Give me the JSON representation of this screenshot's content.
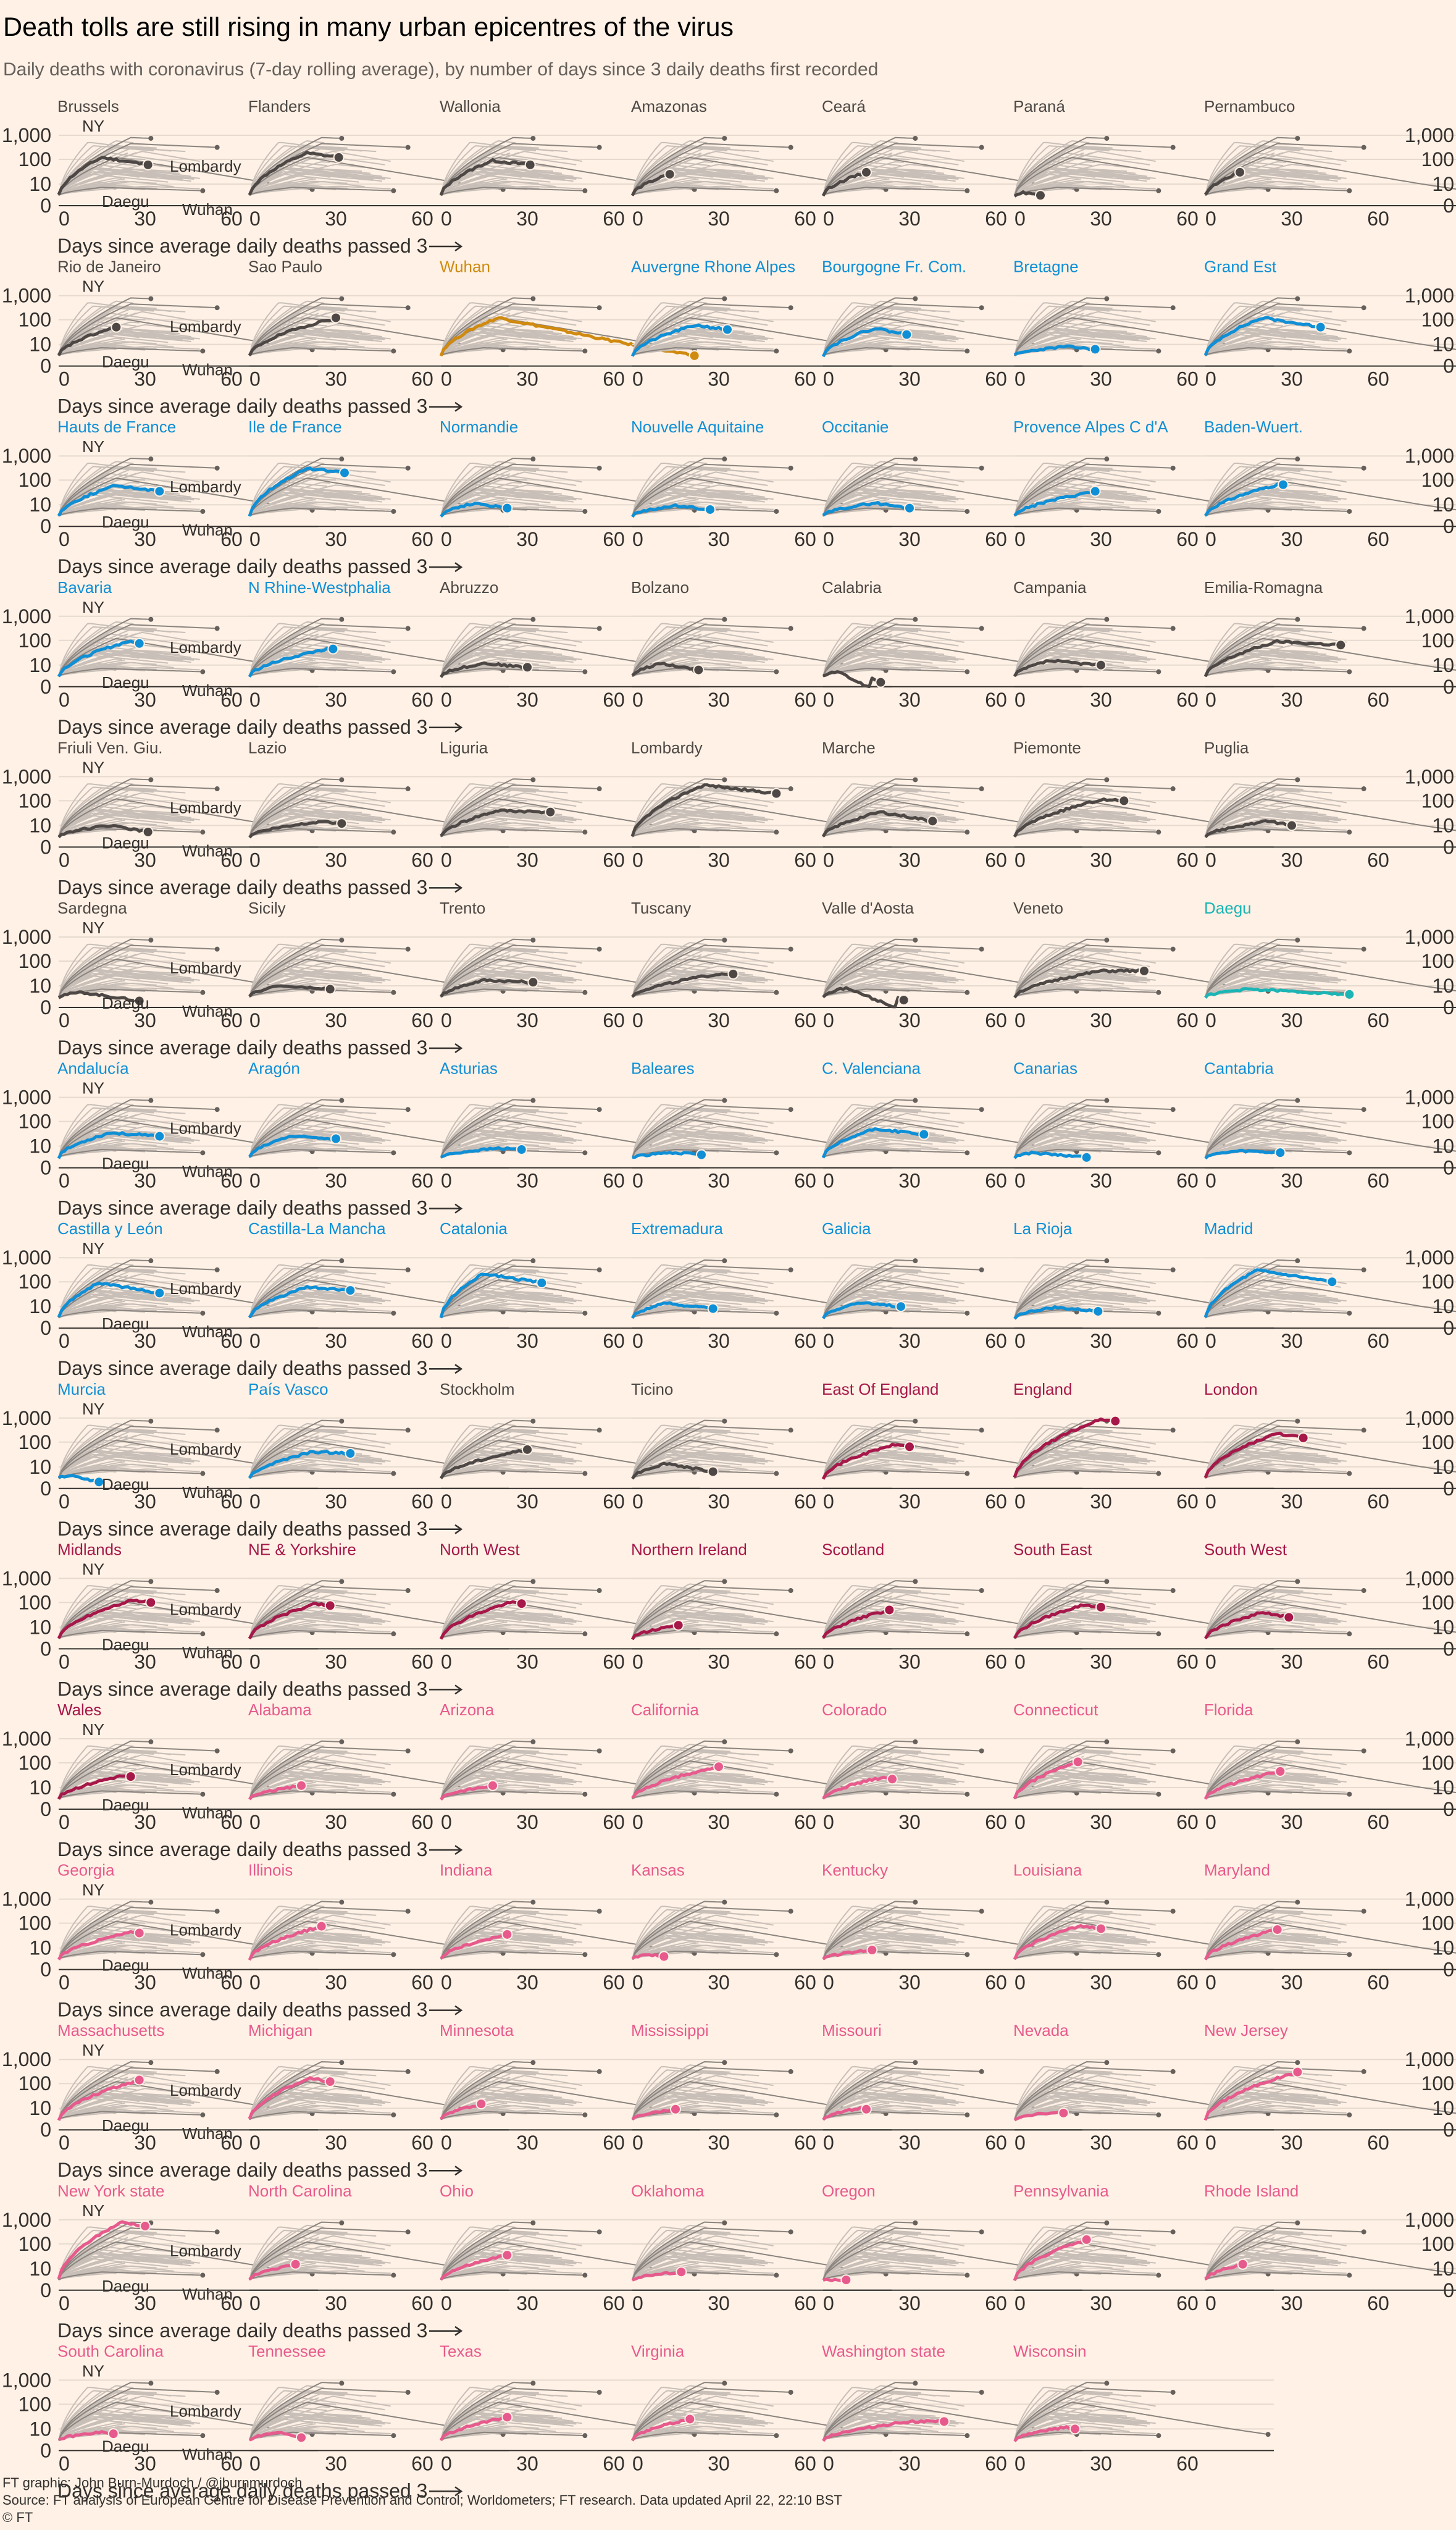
{
  "title": "Death tolls are still rising in many urban epicentres of the virus",
  "subtitle": "Daily deaths with coronavirus (7-day rolling average), by number of days since 3 daily deaths first recorded",
  "footer": {
    "graphic": "FT graphic: John Burn-Murdoch / @jburnmurdoch",
    "source": "Source: FT analysis of European Centre for Disease Prevention and Control; Worldometers; FT research. Data updated April 22, 22:10 BST",
    "copyright": "© FT"
  },
  "chart_data": {
    "type": "line",
    "layout": "small-multiples",
    "xlabel": "Days since average daily deaths passed 3",
    "x_ticks": [
      "0",
      "30",
      "60"
    ],
    "y_ticks": [
      "1,000",
      "100",
      "10",
      "0"
    ],
    "y_scale": "log",
    "xlim": [
      0,
      90
    ],
    "reference_labels": [
      "NY",
      "Lombardy",
      "Daegu",
      "Wuhan"
    ],
    "colors": {
      "grey": "#4D4845",
      "wuhan": "#D08A0F",
      "blue": "#0F8FD6",
      "teal": "#1BB5B5",
      "maroon": "#A6174A",
      "pink": "#E75A8D",
      "background_lines": "#C8BFB8"
    },
    "regions": [
      {
        "name": "Brussels",
        "color": "grey",
        "days": 31,
        "peak": 120,
        "last": 60,
        "peak_day": 15
      },
      {
        "name": "Flanders",
        "color": "grey",
        "days": 31,
        "peak": 180,
        "last": 120,
        "peak_day": 20
      },
      {
        "name": "Wallonia",
        "color": "grey",
        "days": 31,
        "peak": 90,
        "last": 60,
        "peak_day": 18
      },
      {
        "name": "Amazonas",
        "color": "grey",
        "days": 13,
        "peak": 25,
        "last": 25,
        "peak_day": 13
      },
      {
        "name": "Ceará",
        "color": "grey",
        "days": 15,
        "peak": 30,
        "last": 30,
        "peak_day": 15
      },
      {
        "name": "Paraná",
        "color": "grey",
        "days": 9,
        "peak": 4,
        "last": 3,
        "peak_day": 3
      },
      {
        "name": "Pernambuco",
        "color": "grey",
        "days": 12,
        "peak": 30,
        "last": 30,
        "peak_day": 12
      },
      {
        "name": "Rio de Janeiro",
        "color": "grey",
        "days": 20,
        "peak": 50,
        "last": 50,
        "peak_day": 20
      },
      {
        "name": "Sao Paulo",
        "color": "grey",
        "days": 30,
        "peak": 120,
        "last": 120,
        "peak_day": 30
      },
      {
        "name": "Wuhan",
        "color": "wuhan",
        "days": 88,
        "peak": 120,
        "last": 3,
        "peak_day": 20
      },
      {
        "name": "Auvergne Rhone Alpes",
        "color": "blue",
        "days": 33,
        "peak": 60,
        "last": 40,
        "peak_day": 22
      },
      {
        "name": "Bourgogne Fr. Com.",
        "color": "blue",
        "days": 29,
        "peak": 45,
        "last": 25,
        "peak_day": 18
      },
      {
        "name": "Bretagne",
        "color": "blue",
        "days": 28,
        "peak": 8,
        "last": 6,
        "peak_day": 18
      },
      {
        "name": "Grand Est",
        "color": "blue",
        "days": 40,
        "peak": 120,
        "last": 50,
        "peak_day": 20
      },
      {
        "name": "Hauts de France",
        "color": "blue",
        "days": 35,
        "peak": 60,
        "last": 35,
        "peak_day": 20
      },
      {
        "name": "Ile de France",
        "color": "blue",
        "days": 33,
        "peak": 300,
        "last": 200,
        "peak_day": 20
      },
      {
        "name": "Normandie",
        "color": "blue",
        "days": 23,
        "peak": 12,
        "last": 7,
        "peak_day": 12
      },
      {
        "name": "Nouvelle Aquitaine",
        "color": "blue",
        "days": 27,
        "peak": 9,
        "last": 6,
        "peak_day": 15
      },
      {
        "name": "Occitanie",
        "color": "blue",
        "days": 30,
        "peak": 12,
        "last": 7,
        "peak_day": 18
      },
      {
        "name": "Provence Alpes C d'A",
        "color": "blue",
        "days": 28,
        "peak": 35,
        "last": 35,
        "peak_day": 28
      },
      {
        "name": "Baden-Wuert.",
        "color": "blue",
        "days": 27,
        "peak": 65,
        "last": 65,
        "peak_day": 25
      },
      {
        "name": "Bavaria",
        "color": "blue",
        "days": 28,
        "peak": 90,
        "last": 75,
        "peak_day": 24
      },
      {
        "name": "N Rhine-Westphalia",
        "color": "blue",
        "days": 29,
        "peak": 45,
        "last": 45,
        "peak_day": 27
      },
      {
        "name": "Abruzzo",
        "color": "grey",
        "days": 30,
        "peak": 12,
        "last": 8,
        "peak_day": 15
      },
      {
        "name": "Bolzano",
        "color": "grey",
        "days": 23,
        "peak": 12,
        "last": 6,
        "peak_day": 10
      },
      {
        "name": "Calabria",
        "color": "grey",
        "days": 20,
        "peak": 5,
        "last": 0.5,
        "peak_day": 5
      },
      {
        "name": "Campania",
        "color": "grey",
        "days": 30,
        "peak": 15,
        "last": 10,
        "peak_day": 12
      },
      {
        "name": "Emilia-Romagna",
        "color": "grey",
        "days": 47,
        "peak": 90,
        "last": 65,
        "peak_day": 25
      },
      {
        "name": "Friuli Ven. Giu.",
        "color": "grey",
        "days": 31,
        "peak": 10,
        "last": 5,
        "peak_day": 18
      },
      {
        "name": "Lazio",
        "color": "grey",
        "days": 32,
        "peak": 15,
        "last": 12,
        "peak_day": 25
      },
      {
        "name": "Liguria",
        "color": "grey",
        "days": 38,
        "peak": 40,
        "last": 35,
        "peak_day": 20
      },
      {
        "name": "Lombardy",
        "color": "grey",
        "days": 50,
        "peak": 450,
        "last": 200,
        "peak_day": 25
      },
      {
        "name": "Marche",
        "color": "grey",
        "days": 38,
        "peak": 35,
        "last": 15,
        "peak_day": 20
      },
      {
        "name": "Piemonte",
        "color": "grey",
        "days": 38,
        "peak": 110,
        "last": 100,
        "peak_day": 30
      },
      {
        "name": "Puglia",
        "color": "grey",
        "days": 30,
        "peak": 15,
        "last": 10,
        "peak_day": 22
      },
      {
        "name": "Sardegna",
        "color": "grey",
        "days": 28,
        "peak": 5,
        "last": 2,
        "peak_day": 8
      },
      {
        "name": "Sicily",
        "color": "grey",
        "days": 28,
        "peak": 10,
        "last": 7,
        "peak_day": 10
      },
      {
        "name": "Trento",
        "color": "grey",
        "days": 32,
        "peak": 17,
        "last": 14,
        "peak_day": 15
      },
      {
        "name": "Tuscany",
        "color": "grey",
        "days": 35,
        "peak": 30,
        "last": 30,
        "peak_day": 30
      },
      {
        "name": "Valle d'Aosta",
        "color": "grey",
        "days": 28,
        "peak": 8,
        "last": 0.7,
        "peak_day": 8
      },
      {
        "name": "Veneto",
        "color": "grey",
        "days": 45,
        "peak": 40,
        "last": 40,
        "peak_day": 30
      },
      {
        "name": "Daegu",
        "color": "teal",
        "days": 50,
        "peak": 7,
        "last": 4,
        "peak_day": 15
      },
      {
        "name": "Andalucía",
        "color": "blue",
        "days": 35,
        "peak": 35,
        "last": 25,
        "peak_day": 18
      },
      {
        "name": "Aragón",
        "color": "blue",
        "days": 30,
        "peak": 25,
        "last": 20,
        "peak_day": 14
      },
      {
        "name": "Asturias",
        "color": "blue",
        "days": 28,
        "peak": 8,
        "last": 7,
        "peak_day": 20
      },
      {
        "name": "Baleares",
        "color": "blue",
        "days": 24,
        "peak": 5,
        "last": 4,
        "peak_day": 15
      },
      {
        "name": "C. Valenciana",
        "color": "blue",
        "days": 35,
        "peak": 50,
        "last": 30,
        "peak_day": 18
      },
      {
        "name": "Canarias",
        "color": "blue",
        "days": 25,
        "peak": 5,
        "last": 3,
        "peak_day": 6
      },
      {
        "name": "Cantabria",
        "color": "blue",
        "days": 26,
        "peak": 6,
        "last": 5,
        "peak_day": 12
      },
      {
        "name": "Castilla y León",
        "color": "blue",
        "days": 35,
        "peak": 90,
        "last": 35,
        "peak_day": 14
      },
      {
        "name": "Castilla-La Mancha",
        "color": "blue",
        "days": 35,
        "peak": 60,
        "last": 45,
        "peak_day": 20
      },
      {
        "name": "Catalonia",
        "color": "blue",
        "days": 35,
        "peak": 220,
        "last": 90,
        "peak_day": 15
      },
      {
        "name": "Extremadura",
        "color": "blue",
        "days": 28,
        "peak": 14,
        "last": 8,
        "peak_day": 12
      },
      {
        "name": "Galicia",
        "color": "blue",
        "days": 27,
        "peak": 14,
        "last": 10,
        "peak_day": 12
      },
      {
        "name": "La Rioja",
        "color": "blue",
        "days": 29,
        "peak": 9,
        "last": 6,
        "peak_day": 14
      },
      {
        "name": "Madrid",
        "color": "blue",
        "days": 44,
        "peak": 300,
        "last": 100,
        "peak_day": 18
      },
      {
        "name": "Murcia",
        "color": "blue",
        "days": 14,
        "peak": 4,
        "last": 2,
        "peak_day": 4
      },
      {
        "name": "País Vasco",
        "color": "blue",
        "days": 35,
        "peak": 40,
        "last": 35,
        "peak_day": 22
      },
      {
        "name": "Stockholm",
        "color": "grey",
        "days": 30,
        "peak": 50,
        "last": 50,
        "peak_day": 30
      },
      {
        "name": "Ticino",
        "color": "grey",
        "days": 28,
        "peak": 14,
        "last": 6,
        "peak_day": 12
      },
      {
        "name": "East Of England",
        "color": "maroon",
        "days": 30,
        "peak": 80,
        "last": 65,
        "peak_day": 25
      },
      {
        "name": "England",
        "color": "maroon",
        "days": 35,
        "peak": 900,
        "last": 750,
        "peak_day": 30
      },
      {
        "name": "London",
        "color": "maroon",
        "days": 34,
        "peak": 230,
        "last": 150,
        "peak_day": 25
      },
      {
        "name": "Midlands",
        "color": "maroon",
        "days": 32,
        "peak": 120,
        "last": 100,
        "peak_day": 25
      },
      {
        "name": "NE & Yorkshire",
        "color": "maroon",
        "days": 28,
        "peak": 90,
        "last": 75,
        "peak_day": 23
      },
      {
        "name": "North West",
        "color": "maroon",
        "days": 28,
        "peak": 100,
        "last": 90,
        "peak_day": 24
      },
      {
        "name": "Northern Ireland",
        "color": "maroon",
        "days": 16,
        "peak": 12,
        "last": 12,
        "peak_day": 16
      },
      {
        "name": "Scotland",
        "color": "maroon",
        "days": 23,
        "peak": 50,
        "last": 50,
        "peak_day": 23
      },
      {
        "name": "South East",
        "color": "maroon",
        "days": 30,
        "peak": 80,
        "last": 65,
        "peak_day": 24
      },
      {
        "name": "South West",
        "color": "maroon",
        "days": 29,
        "peak": 40,
        "last": 25,
        "peak_day": 20
      },
      {
        "name": "Wales",
        "color": "maroon",
        "days": 25,
        "peak": 30,
        "last": 28,
        "peak_day": 22
      },
      {
        "name": "Alabama",
        "color": "pink",
        "days": 18,
        "peak": 12,
        "last": 12,
        "peak_day": 18
      },
      {
        "name": "Arizona",
        "color": "pink",
        "days": 18,
        "peak": 12,
        "last": 12,
        "peak_day": 18
      },
      {
        "name": "California",
        "color": "pink",
        "days": 30,
        "peak": 70,
        "last": 70,
        "peak_day": 30
      },
      {
        "name": "Colorado",
        "color": "pink",
        "days": 24,
        "peak": 25,
        "last": 22,
        "peak_day": 20
      },
      {
        "name": "Connecticut",
        "color": "pink",
        "days": 22,
        "peak": 110,
        "last": 110,
        "peak_day": 22
      },
      {
        "name": "Florida",
        "color": "pink",
        "days": 26,
        "peak": 45,
        "last": 45,
        "peak_day": 26
      },
      {
        "name": "Georgia",
        "color": "pink",
        "days": 28,
        "peak": 45,
        "last": 40,
        "peak_day": 26
      },
      {
        "name": "Illinois",
        "color": "pink",
        "days": 25,
        "peak": 75,
        "last": 75,
        "peak_day": 25
      },
      {
        "name": "Indiana",
        "color": "pink",
        "days": 23,
        "peak": 35,
        "last": 35,
        "peak_day": 23
      },
      {
        "name": "Kansas",
        "color": "pink",
        "days": 11,
        "peak": 5,
        "last": 4,
        "peak_day": 6
      },
      {
        "name": "Kentucky",
        "color": "pink",
        "days": 17,
        "peak": 8,
        "last": 8,
        "peak_day": 17
      },
      {
        "name": "Louisiana",
        "color": "pink",
        "days": 30,
        "peak": 80,
        "last": 60,
        "peak_day": 23
      },
      {
        "name": "Maryland",
        "color": "pink",
        "days": 25,
        "peak": 55,
        "last": 55,
        "peak_day": 25
      },
      {
        "name": "Massachusetts",
        "color": "pink",
        "days": 28,
        "peak": 140,
        "last": 140,
        "peak_day": 28
      },
      {
        "name": "Michigan",
        "color": "pink",
        "days": 28,
        "peak": 170,
        "last": 120,
        "peak_day": 21
      },
      {
        "name": "Minnesota",
        "color": "pink",
        "days": 14,
        "peak": 15,
        "last": 15,
        "peak_day": 14
      },
      {
        "name": "Mississippi",
        "color": "pink",
        "days": 15,
        "peak": 9,
        "last": 9,
        "peak_day": 15
      },
      {
        "name": "Missouri",
        "color": "pink",
        "days": 15,
        "peak": 10,
        "last": 9,
        "peak_day": 13
      },
      {
        "name": "Nevada",
        "color": "pink",
        "days": 17,
        "peak": 6,
        "last": 6,
        "peak_day": 10
      },
      {
        "name": "New Jersey",
        "color": "pink",
        "days": 32,
        "peak": 300,
        "last": 300,
        "peak_day": 32
      },
      {
        "name": "New York state",
        "color": "pink",
        "days": 30,
        "peak": 800,
        "last": 550,
        "peak_day": 22
      },
      {
        "name": "North Carolina",
        "color": "pink",
        "days": 16,
        "peak": 15,
        "last": 15,
        "peak_day": 16
      },
      {
        "name": "Ohio",
        "color": "pink",
        "days": 23,
        "peak": 35,
        "last": 35,
        "peak_day": 23
      },
      {
        "name": "Oklahoma",
        "color": "pink",
        "days": 17,
        "peak": 7,
        "last": 7,
        "peak_day": 17
      },
      {
        "name": "Oregon",
        "color": "pink",
        "days": 8,
        "peak": 3,
        "last": 3,
        "peak_day": 8
      },
      {
        "name": "Pennsylvania",
        "color": "pink",
        "days": 25,
        "peak": 150,
        "last": 150,
        "peak_day": 25
      },
      {
        "name": "Rhode Island",
        "color": "pink",
        "days": 13,
        "peak": 15,
        "last": 15,
        "peak_day": 13
      },
      {
        "name": "South Carolina",
        "color": "pink",
        "days": 19,
        "peak": 7,
        "last": 6,
        "peak_day": 15
      },
      {
        "name": "Tennessee",
        "color": "pink",
        "days": 18,
        "peak": 7,
        "last": 4,
        "peak_day": 10
      },
      {
        "name": "Texas",
        "color": "pink",
        "days": 23,
        "peak": 30,
        "last": 30,
        "peak_day": 23
      },
      {
        "name": "Virginia",
        "color": "pink",
        "days": 20,
        "peak": 25,
        "last": 25,
        "peak_day": 20
      },
      {
        "name": "Washington state",
        "color": "pink",
        "days": 42,
        "peak": 20,
        "last": 20,
        "peak_day": 30
      },
      {
        "name": "Wisconsin",
        "color": "pink",
        "days": 21,
        "peak": 12,
        "last": 10,
        "peak_day": 18
      }
    ]
  }
}
